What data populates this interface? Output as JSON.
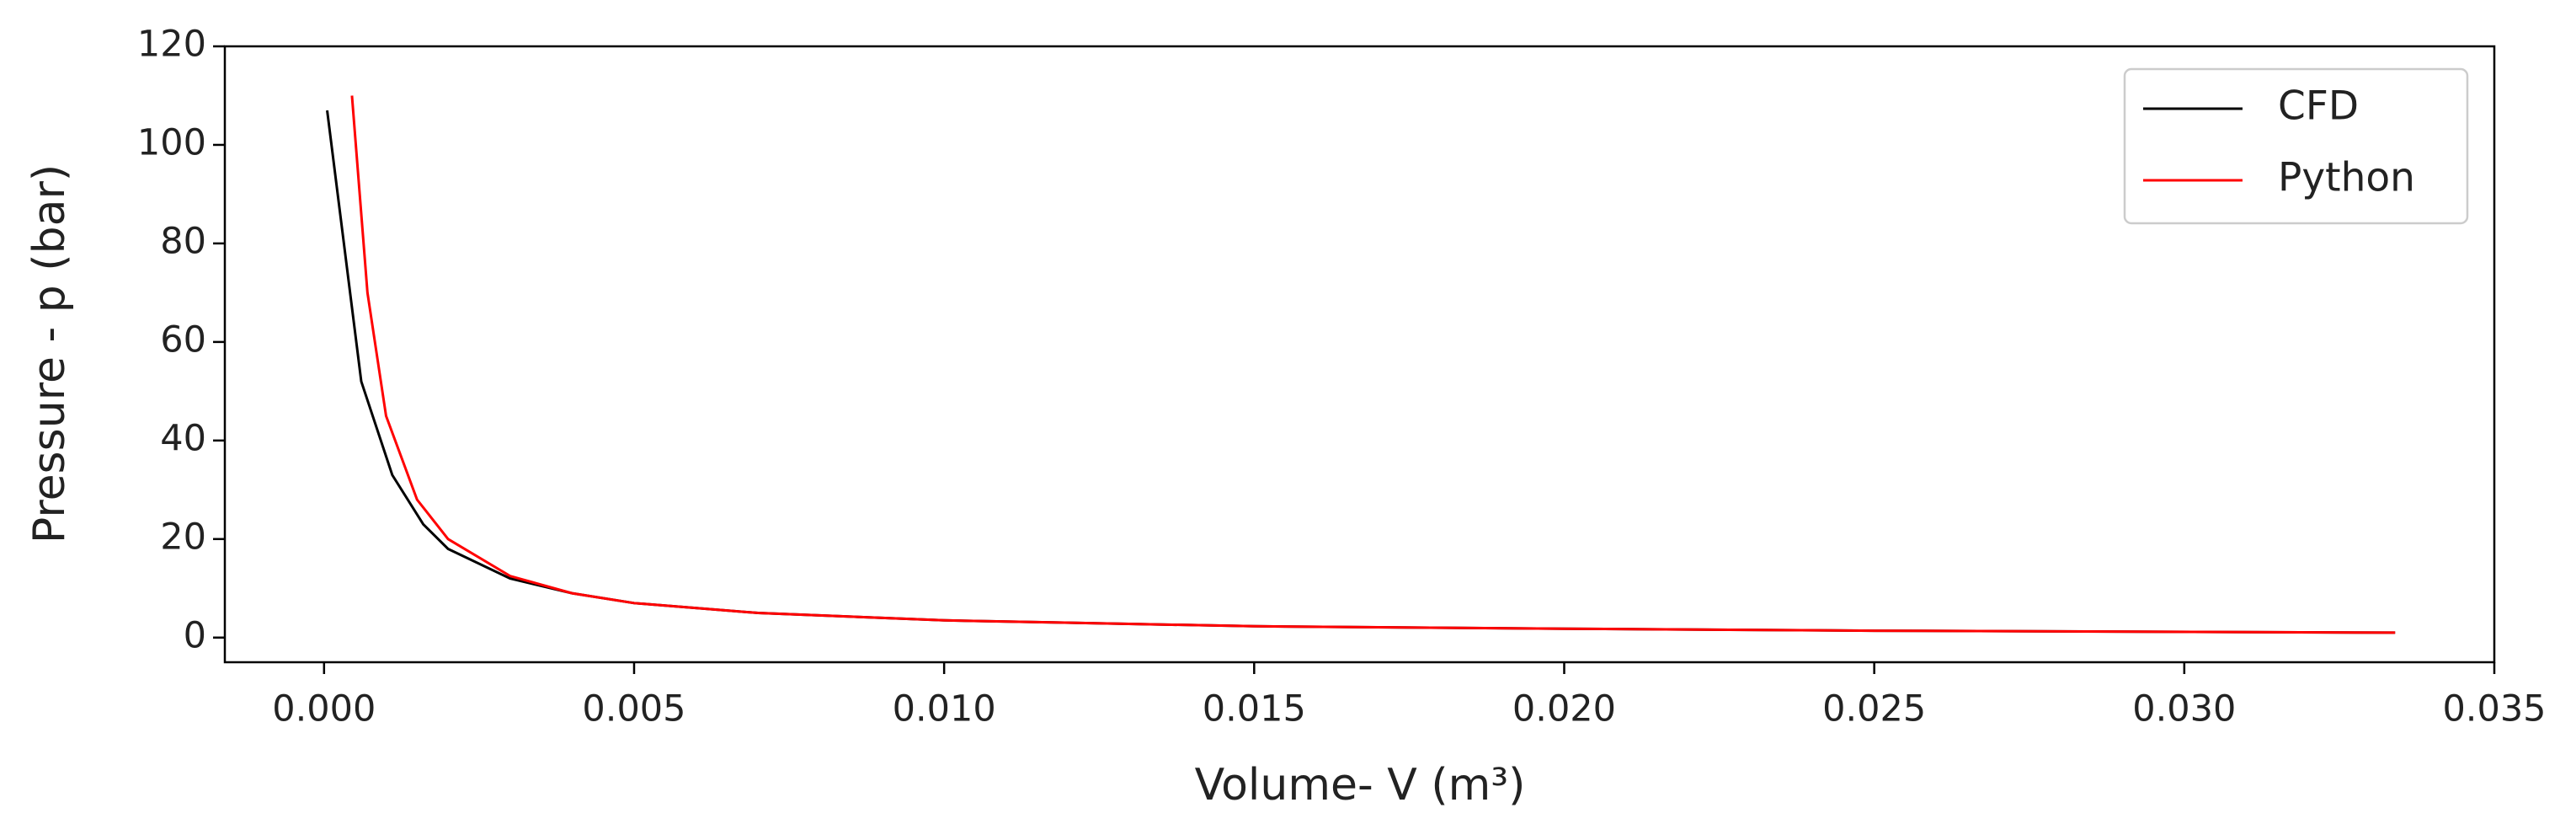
{
  "chart_data": {
    "type": "line",
    "xlabel": "Volume- V (m³)",
    "ylabel": "Pressure - p (bar)",
    "xlim": [
      -0.0016,
      0.035
    ],
    "ylim": [
      -5,
      120
    ],
    "xticks": [
      {
        "value": 0,
        "label": "0.000"
      },
      {
        "value": 0.005,
        "label": "0.005"
      },
      {
        "value": 0.01,
        "label": "0.010"
      },
      {
        "value": 0.015,
        "label": "0.015"
      },
      {
        "value": 0.02,
        "label": "0.020"
      },
      {
        "value": 0.025,
        "label": "0.025"
      },
      {
        "value": 0.03,
        "label": "0.030"
      },
      {
        "value": 0.035,
        "label": "0.035"
      }
    ],
    "yticks": [
      0,
      20,
      40,
      60,
      80,
      100,
      120
    ],
    "legend": "upper right",
    "series": [
      {
        "name": "CFD",
        "color": "#000000",
        "x": [
          5e-05,
          0.0006,
          0.0011,
          0.0016,
          0.002,
          0.003,
          0.004,
          0.005,
          0.007,
          0.01,
          0.015,
          0.02,
          0.025,
          0.0334
        ],
        "values": [
          107,
          52,
          33,
          23,
          18,
          12,
          9,
          7,
          5,
          3.5,
          2.3,
          1.8,
          1.4,
          1.0
        ]
      },
      {
        "name": "Python",
        "color": "#ff0000",
        "x": [
          0.00045,
          0.0007,
          0.001,
          0.0015,
          0.002,
          0.003,
          0.004,
          0.005,
          0.007,
          0.01,
          0.015,
          0.02,
          0.025,
          0.0334
        ],
        "values": [
          110,
          70,
          45,
          28,
          20,
          12.5,
          9,
          7,
          5,
          3.5,
          2.3,
          1.8,
          1.4,
          1.0
        ]
      }
    ]
  }
}
